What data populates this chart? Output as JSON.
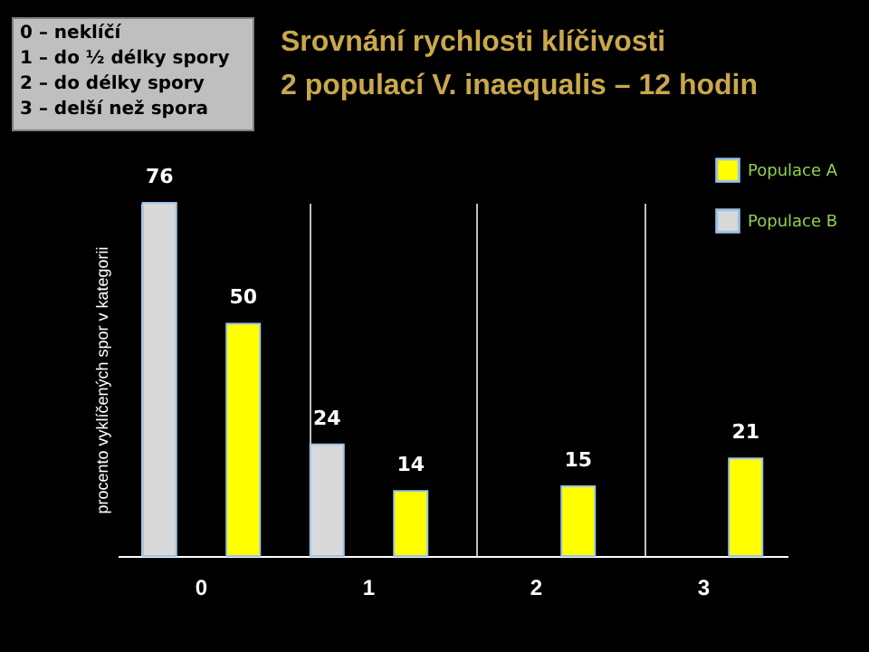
{
  "chart_data": {
    "type": "bar",
    "title": [
      "Srovnání rychlosti klíčivosti",
      "2 populací V. inaequalis – 12 hodin"
    ],
    "ylabel": "procento vyklíčených spor v kategorii",
    "categories": [
      "0",
      "1",
      "2",
      "3"
    ],
    "series": [
      {
        "name": "Populace A",
        "color": "#ffff00",
        "values": [
          50,
          14,
          15,
          21
        ]
      },
      {
        "name": "Populace B",
        "color": "#d9d9d9",
        "values": [
          76,
          24,
          null,
          null
        ]
      }
    ],
    "annotations": [
      "0 – neklíčí",
      "1 – do ½ délky spory",
      "2 – do délky spory",
      "3 – delší než spora"
    ],
    "data_labels": true,
    "legend": "top right",
    "grid": "x",
    "tick_labels": "x"
  }
}
